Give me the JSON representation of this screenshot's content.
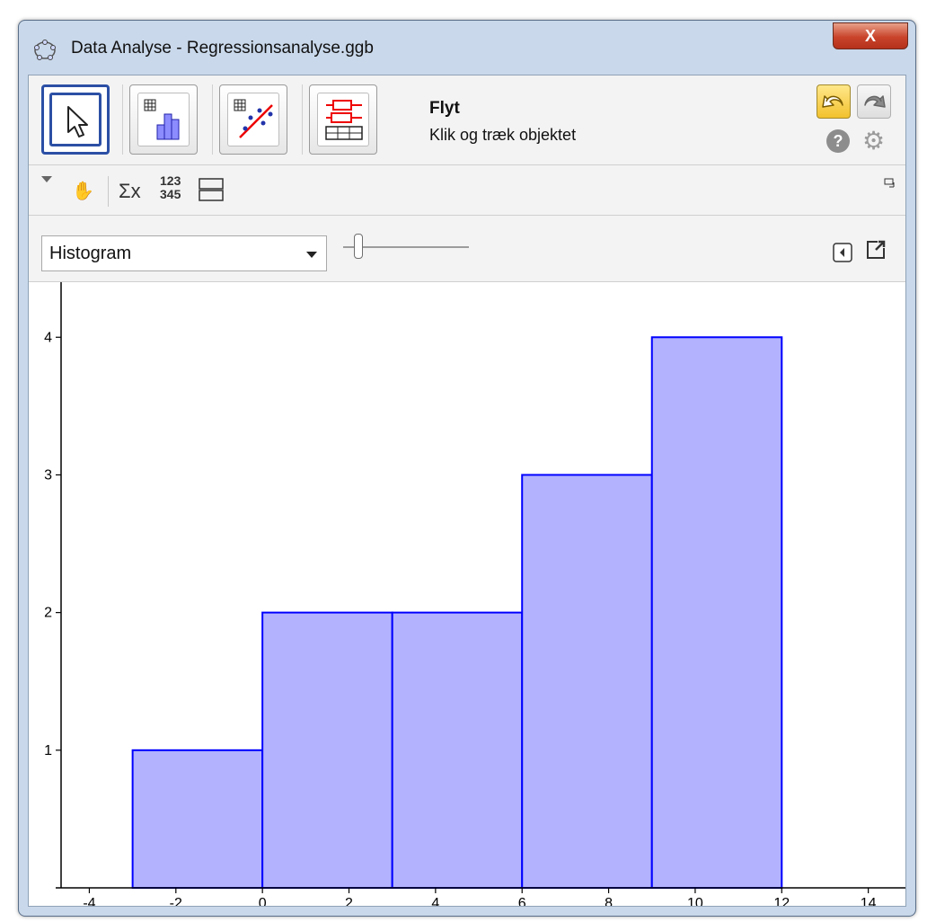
{
  "window": {
    "title": "Data Analyse - Regressionsanalyse.ggb",
    "close_label": "X",
    "icons": [
      "app-icon"
    ]
  },
  "toolbar": {
    "tools": [
      {
        "name": "move-tool",
        "icon": "cursor-arrow-icon",
        "selected": true
      },
      {
        "name": "histogram-tool",
        "icon": "histogram-icon",
        "selected": false
      },
      {
        "name": "regression-tool",
        "icon": "scatter-regression-icon",
        "selected": false
      },
      {
        "name": "boxplot-tool",
        "icon": "boxplot-icon",
        "selected": false
      }
    ],
    "tool_name": "Flyt",
    "tool_help": "Klik og træk objektet",
    "help_label": "?",
    "icons": [
      "undo-icon",
      "redo-icon",
      "help-icon",
      "settings-gear-icon"
    ]
  },
  "stylebar": {
    "sigma_label": "Σx",
    "nums_top": "123",
    "nums_bottom": "345",
    "icons": [
      "menu-triangle-icon",
      "hand-icon",
      "statistics-sigma-icon",
      "data-numbers-icon",
      "stack-view-icon",
      "minimize-view-icon"
    ]
  },
  "controls": {
    "plot_type": "Histogram",
    "icons": [
      "dropdown-arrow-icon",
      "collapse-panel-icon",
      "popout-window-icon"
    ]
  },
  "colors": {
    "bar_fill": "#b2b2ff",
    "bar_stroke": "#0000ff",
    "select_border": "#2b4fa5",
    "undo_yellow": "#f2c12d"
  },
  "chart_data": {
    "type": "bar",
    "bins": [
      {
        "from": -3,
        "to": 0,
        "value": 1
      },
      {
        "from": 0,
        "to": 3,
        "value": 2
      },
      {
        "from": 3,
        "to": 6,
        "value": 2
      },
      {
        "from": 6,
        "to": 9,
        "value": 3
      },
      {
        "from": 9,
        "to": 12,
        "value": 4
      }
    ],
    "x_ticks": [
      "-4",
      "-2",
      "0",
      "2",
      "4",
      "6",
      "8",
      "10",
      "12",
      "14"
    ],
    "y_ticks": [
      "1",
      "2",
      "3",
      "4"
    ],
    "xlim": [
      -5.4,
      14.9
    ],
    "ylim": [
      0,
      4.4
    ],
    "grid": false
  }
}
